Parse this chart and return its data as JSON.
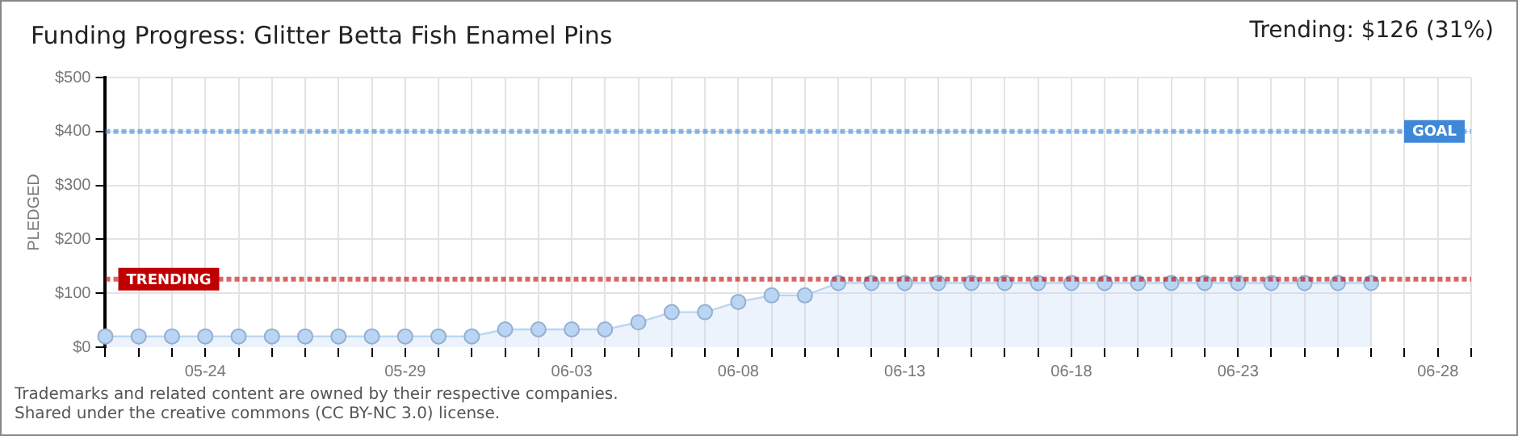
{
  "chart_data": {
    "type": "area",
    "title": "Funding Progress: Glitter Betta Fish Enamel Pins",
    "ylabel": "PLEDGED",
    "annotations": [
      "Trending: $126 (31%)",
      "Trademarks and related content are owned by their respective companies.",
      "Shared under the creative commons (CC BY-NC 3.0) license."
    ],
    "categories": [
      null,
      null,
      null,
      "05-24",
      null,
      null,
      null,
      null,
      null,
      "05-29",
      null,
      null,
      null,
      null,
      "06-03",
      null,
      null,
      null,
      null,
      "06-08",
      null,
      null,
      null,
      null,
      "06-13",
      null,
      null,
      null,
      null,
      "06-18",
      null,
      null,
      null,
      null,
      "06-23",
      null,
      null,
      null,
      null,
      null,
      "06-28",
      null
    ],
    "series": [
      {
        "color": "#b9d5f3",
        "values": [
          20,
          20,
          20,
          20,
          20,
          20,
          20,
          20,
          20,
          20,
          20,
          20,
          33,
          33,
          33,
          33,
          46,
          65,
          65,
          84,
          96,
          96,
          119,
          119,
          119,
          119,
          119,
          119,
          119,
          119,
          119,
          119,
          119,
          119,
          119,
          119,
          119,
          119,
          119,
          null,
          null,
          null
        ]
      }
    ],
    "ylim": [
      0,
      500
    ],
    "yticks": [
      {
        "value": 0,
        "label": "$0"
      },
      {
        "value": 100,
        "label": "$100"
      },
      {
        "value": 200,
        "label": "$200"
      },
      {
        "value": 300,
        "label": "$300"
      },
      {
        "value": 400,
        "label": "$400"
      },
      {
        "value": 500,
        "label": "$500"
      }
    ],
    "ref_lines": [
      {
        "axis": "y",
        "value": 400,
        "label": "GOAL",
        "color": "#3f88d8",
        "line_style": "dotted"
      },
      {
        "axis": "y",
        "value": 126,
        "label": "TRENDING",
        "color": "#c00000",
        "line_style": "dotted"
      }
    ],
    "grid": true,
    "legend": false,
    "marker": "circle",
    "line_style": "solid"
  }
}
